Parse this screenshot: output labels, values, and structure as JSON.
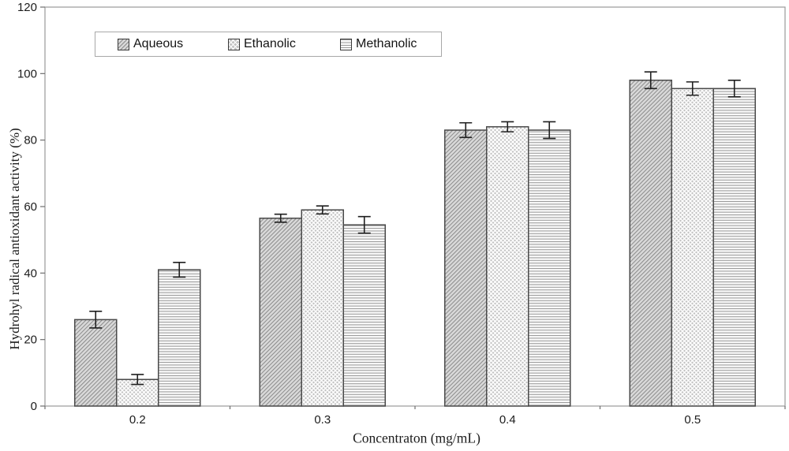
{
  "chart_data": {
    "type": "bar",
    "title": "",
    "xlabel": "Concentraton (mg/mL)",
    "ylabel": "Hydrohyl radical antioxidant activity (%)",
    "categories": [
      "0.2",
      "0.3",
      "0.4",
      "0.5"
    ],
    "series": [
      {
        "name": "Aqueous",
        "pattern": "diagonal-hatch",
        "values": [
          26,
          56.5,
          83,
          98
        ],
        "errors": [
          2.5,
          1.2,
          2.2,
          2.5
        ]
      },
      {
        "name": "Ethanolic",
        "pattern": "diamond-crosshatch",
        "values": [
          8,
          59,
          84,
          95.5
        ],
        "errors": [
          1.5,
          1.2,
          1.5,
          2
        ]
      },
      {
        "name": "Methanolic",
        "pattern": "horizontal-lines",
        "values": [
          41,
          54.5,
          83,
          95.5
        ],
        "errors": [
          2.2,
          2.5,
          2.5,
          2.5
        ]
      }
    ],
    "ylim": [
      0,
      120
    ],
    "yticks": [
      "0",
      "20",
      "40",
      "60",
      "80",
      "100",
      "120"
    ],
    "grid": false,
    "error_bars": true,
    "legend_position": "top-left-inside"
  },
  "colors": {
    "background": "#ffffff",
    "plot_border": "#9a9a9a",
    "tick": "#6e6e6e",
    "bar_border": "#4a4a4a",
    "error_bar": "#1f1f1f",
    "text": "#1c1c1c",
    "aqueous_bg": "#d9d9d9",
    "aqueous_line": "#8a8a8a",
    "ethanolic_bg": "#c2c2c2",
    "ethanolic_line": "#ffffff",
    "methanolic_bg": "#fafafa",
    "methanolic_line": "#9a9a9a",
    "legend_border": "#a8a8a8"
  }
}
